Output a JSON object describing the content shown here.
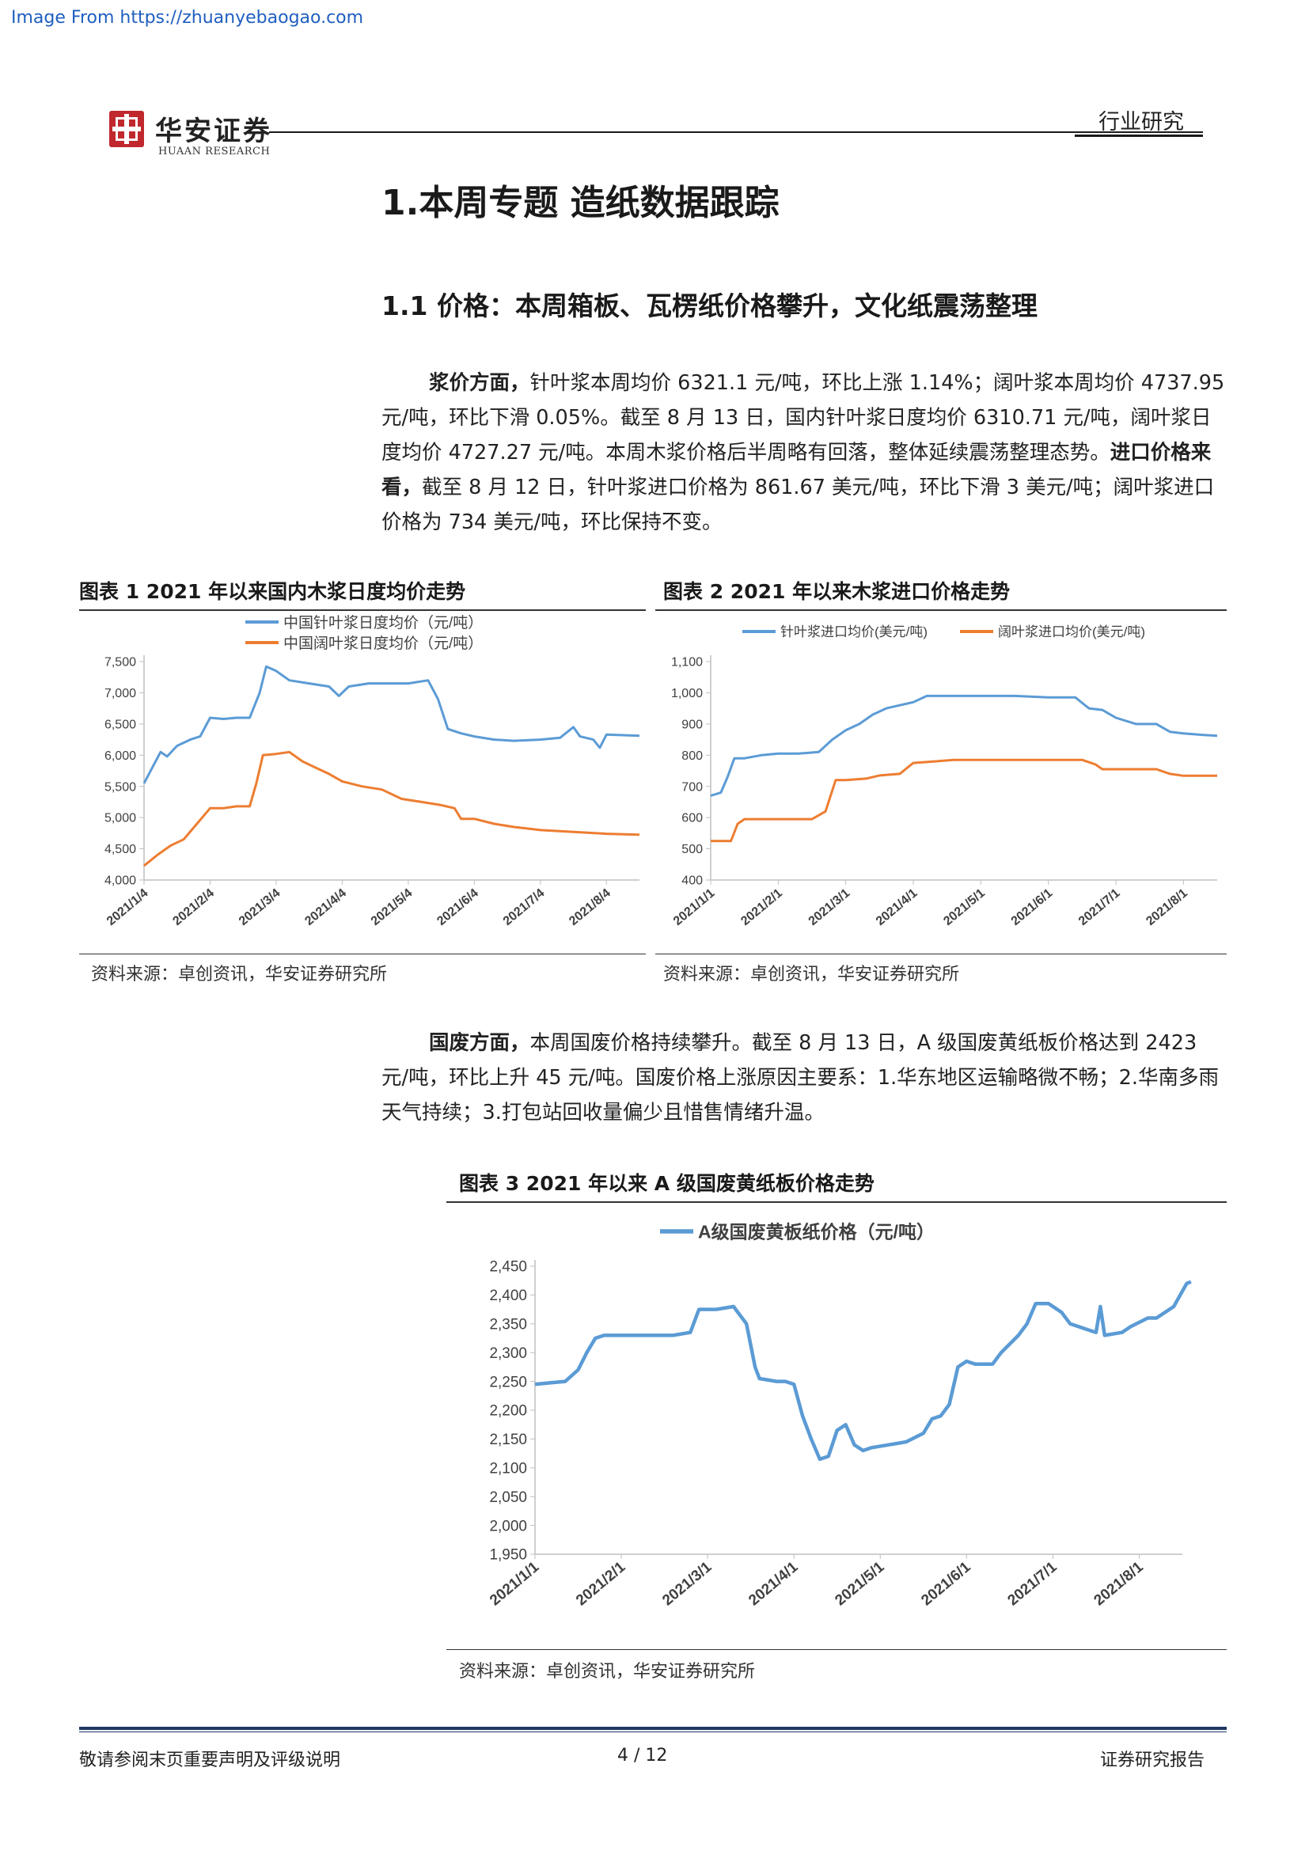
{
  "watermark": "Image From https://zhuanyebaogao.com",
  "header": {
    "logo_cn": "华安证券",
    "logo_en": "HUAAN RESEARCH",
    "category": "行业研究"
  },
  "section_title": "1.本周专题 造纸数据跟踪",
  "subsection_title": "1.1 价格：本周箱板、瓦楞纸价格攀升，文化纸震荡整理",
  "paragraph1": {
    "lead": "浆价方面，",
    "text1": "针叶浆本周均价 6321.1 元/吨，环比上涨 1.14%；阔叶浆本周均价 4737.95 元/吨，环比下滑 0.05%。截至 8 月 13 日，国内针叶浆日度均价 6310.71 元/吨，阔叶浆日度均价 4727.27 元/吨。本周木浆价格后半周略有回落，整体延续震荡整理态势。",
    "lead2": "进口价格来看，",
    "text2": "截至 8 月 12 日，针叶浆进口价格为 861.67 美元/吨，环比下滑 3 美元/吨；阔叶浆进口价格为 734 美元/吨，环比保持不变。"
  },
  "paragraph2": {
    "lead": "国废方面，",
    "text": "本周国废价格持续攀升。截至 8 月 13 日，A 级国废黄纸板价格达到 2423 元/吨，环比上升 45 元/吨。国废价格上涨原因主要系：1.华东地区运输略微不畅；2.华南多雨天气持续；3.打包站回收量偏少且惜售情绪升温。"
  },
  "figures": [
    {
      "title": "图表 1 2021 年以来国内木浆日度均价走势",
      "source": "资料来源：卓创资讯，华安证券研究所"
    },
    {
      "title": "图表 2 2021 年以来木浆进口价格走势",
      "source": "资料来源：卓创资讯，华安证券研究所"
    },
    {
      "title": "图表  3 2021 年以来 A 级国废黄纸板价格走势",
      "source": "资料来源：卓创资讯，华安证券研究所"
    }
  ],
  "chart_data": [
    {
      "type": "line",
      "x_ticks": [
        "2021/1/4",
        "2021/2/4",
        "2021/3/4",
        "2021/4/4",
        "2021/5/4",
        "2021/6/4",
        "2021/7/4",
        "2021/8/4"
      ],
      "ylim": [
        4000,
        7500
      ],
      "y_ticks": [
        "7,500",
        "7,000",
        "6,500",
        "6,000",
        "5,500",
        "5,000",
        "4,500",
        "4,000"
      ],
      "series": [
        {
          "name": "中国针叶浆日度均价（元/吨）",
          "color": "#5b9bd5",
          "points": [
            [
              0,
              5550
            ],
            [
              0.15,
              5850
            ],
            [
              0.25,
              6050
            ],
            [
              0.35,
              5980
            ],
            [
              0.5,
              6150
            ],
            [
              0.7,
              6250
            ],
            [
              0.85,
              6300
            ],
            [
              1.0,
              6600
            ],
            [
              1.2,
              6580
            ],
            [
              1.4,
              6600
            ],
            [
              1.6,
              6600
            ],
            [
              1.75,
              7000
            ],
            [
              1.85,
              7420
            ],
            [
              2.0,
              7350
            ],
            [
              2.2,
              7200
            ],
            [
              2.5,
              7150
            ],
            [
              2.8,
              7100
            ],
            [
              2.95,
              6950
            ],
            [
              3.1,
              7100
            ],
            [
              3.4,
              7150
            ],
            [
              3.7,
              7150
            ],
            [
              4.0,
              7150
            ],
            [
              4.3,
              7200
            ],
            [
              4.45,
              6900
            ],
            [
              4.6,
              6420
            ],
            [
              4.8,
              6350
            ],
            [
              5.0,
              6300
            ],
            [
              5.3,
              6250
            ],
            [
              5.6,
              6230
            ],
            [
              6.0,
              6250
            ],
            [
              6.3,
              6280
            ],
            [
              6.5,
              6450
            ],
            [
              6.6,
              6300
            ],
            [
              6.8,
              6250
            ],
            [
              6.9,
              6120
            ],
            [
              7.0,
              6330
            ],
            [
              7.3,
              6320
            ],
            [
              7.5,
              6310
            ]
          ]
        },
        {
          "name": "中国阔叶浆日度均价（元/吨）",
          "color": "#ed7d31",
          "points": [
            [
              0,
              4230
            ],
            [
              0.2,
              4400
            ],
            [
              0.4,
              4550
            ],
            [
              0.6,
              4650
            ],
            [
              0.8,
              4900
            ],
            [
              1.0,
              5150
            ],
            [
              1.2,
              5150
            ],
            [
              1.4,
              5180
            ],
            [
              1.6,
              5180
            ],
            [
              1.7,
              5550
            ],
            [
              1.8,
              6000
            ],
            [
              2.0,
              6020
            ],
            [
              2.2,
              6050
            ],
            [
              2.4,
              5900
            ],
            [
              2.6,
              5800
            ],
            [
              2.8,
              5700
            ],
            [
              3.0,
              5580
            ],
            [
              3.3,
              5500
            ],
            [
              3.6,
              5450
            ],
            [
              3.9,
              5300
            ],
            [
              4.2,
              5250
            ],
            [
              4.5,
              5200
            ],
            [
              4.7,
              5150
            ],
            [
              4.8,
              4980
            ],
            [
              5.0,
              4980
            ],
            [
              5.3,
              4900
            ],
            [
              5.6,
              4850
            ],
            [
              6.0,
              4800
            ],
            [
              6.5,
              4770
            ],
            [
              7.0,
              4740
            ],
            [
              7.5,
              4727
            ]
          ]
        }
      ]
    },
    {
      "type": "line",
      "x_ticks": [
        "2021/1/1",
        "2021/2/1",
        "2021/3/1",
        "2021/4/1",
        "2021/5/1",
        "2021/6/1",
        "2021/7/1",
        "2021/8/1"
      ],
      "ylim": [
        400,
        1100
      ],
      "y_ticks": [
        "1,100",
        "1,000",
        "900",
        "800",
        "700",
        "600",
        "500",
        "400"
      ],
      "series": [
        {
          "name": "针叶浆进口均价(美元/吨)",
          "color": "#5b9bd5",
          "points": [
            [
              0,
              670
            ],
            [
              0.15,
              680
            ],
            [
              0.25,
              730
            ],
            [
              0.35,
              790
            ],
            [
              0.5,
              790
            ],
            [
              0.75,
              800
            ],
            [
              1.0,
              805
            ],
            [
              1.3,
              805
            ],
            [
              1.6,
              810
            ],
            [
              1.8,
              850
            ],
            [
              2.0,
              880
            ],
            [
              2.2,
              900
            ],
            [
              2.4,
              930
            ],
            [
              2.6,
              950
            ],
            [
              2.8,
              960
            ],
            [
              3.0,
              970
            ],
            [
              3.2,
              990
            ],
            [
              3.5,
              990
            ],
            [
              4.0,
              990
            ],
            [
              4.5,
              990
            ],
            [
              5.0,
              985
            ],
            [
              5.4,
              985
            ],
            [
              5.6,
              950
            ],
            [
              5.8,
              945
            ],
            [
              6.0,
              920
            ],
            [
              6.3,
              900
            ],
            [
              6.6,
              900
            ],
            [
              6.8,
              875
            ],
            [
              7.0,
              870
            ],
            [
              7.3,
              865
            ],
            [
              7.5,
              862
            ]
          ]
        },
        {
          "name": "阔叶浆进口均价(美元/吨)",
          "color": "#ed7d31",
          "points": [
            [
              0,
              525
            ],
            [
              0.3,
              525
            ],
            [
              0.4,
              580
            ],
            [
              0.5,
              595
            ],
            [
              1.0,
              595
            ],
            [
              1.5,
              595
            ],
            [
              1.7,
              620
            ],
            [
              1.85,
              720
            ],
            [
              2.0,
              720
            ],
            [
              2.3,
              725
            ],
            [
              2.5,
              735
            ],
            [
              2.8,
              740
            ],
            [
              3.0,
              775
            ],
            [
              3.3,
              780
            ],
            [
              3.6,
              785
            ],
            [
              4.5,
              785
            ],
            [
              5.5,
              785
            ],
            [
              5.7,
              770
            ],
            [
              5.8,
              755
            ],
            [
              6.2,
              755
            ],
            [
              6.6,
              755
            ],
            [
              6.8,
              740
            ],
            [
              7.0,
              734
            ],
            [
              7.5,
              734
            ]
          ]
        }
      ]
    },
    {
      "type": "line",
      "x_ticks": [
        "2021/1/1",
        "2021/2/1",
        "2021/3/1",
        "2021/4/1",
        "2021/5/1",
        "2021/6/1",
        "2021/7/1",
        "2021/8/1"
      ],
      "ylim": [
        1950,
        2450
      ],
      "y_ticks": [
        "2,450",
        "2,400",
        "2,350",
        "2,300",
        "2,250",
        "2,200",
        "2,150",
        "2,100",
        "2,050",
        "2,000",
        "1,950"
      ],
      "series": [
        {
          "name": "A级国废黄板纸价格（元/吨）",
          "color": "#5b9bd5",
          "points": [
            [
              0,
              2245
            ],
            [
              0.2,
              2248
            ],
            [
              0.35,
              2250
            ],
            [
              0.5,
              2270
            ],
            [
              0.6,
              2300
            ],
            [
              0.7,
              2325
            ],
            [
              0.8,
              2330
            ],
            [
              1.0,
              2330
            ],
            [
              1.3,
              2330
            ],
            [
              1.6,
              2330
            ],
            [
              1.8,
              2335
            ],
            [
              1.9,
              2375
            ],
            [
              2.1,
              2375
            ],
            [
              2.3,
              2380
            ],
            [
              2.45,
              2350
            ],
            [
              2.55,
              2275
            ],
            [
              2.6,
              2255
            ],
            [
              2.8,
              2250
            ],
            [
              2.9,
              2250
            ],
            [
              3.0,
              2245
            ],
            [
              3.1,
              2190
            ],
            [
              3.2,
              2150
            ],
            [
              3.3,
              2115
            ],
            [
              3.4,
              2120
            ],
            [
              3.5,
              2165
            ],
            [
              3.6,
              2175
            ],
            [
              3.7,
              2140
            ],
            [
              3.8,
              2130
            ],
            [
              3.9,
              2135
            ],
            [
              4.1,
              2140
            ],
            [
              4.3,
              2145
            ],
            [
              4.5,
              2160
            ],
            [
              4.6,
              2185
            ],
            [
              4.7,
              2190
            ],
            [
              4.8,
              2210
            ],
            [
              4.9,
              2275
            ],
            [
              5.0,
              2285
            ],
            [
              5.1,
              2280
            ],
            [
              5.3,
              2280
            ],
            [
              5.4,
              2300
            ],
            [
              5.6,
              2330
            ],
            [
              5.7,
              2350
            ],
            [
              5.8,
              2385
            ],
            [
              5.95,
              2385
            ],
            [
              6.1,
              2370
            ],
            [
              6.2,
              2350
            ],
            [
              6.4,
              2340
            ],
            [
              6.5,
              2335
            ],
            [
              6.55,
              2380
            ],
            [
              6.6,
              2330
            ],
            [
              6.8,
              2335
            ],
            [
              6.9,
              2345
            ],
            [
              7.1,
              2360
            ],
            [
              7.2,
              2360
            ],
            [
              7.4,
              2380
            ],
            [
              7.55,
              2420
            ],
            [
              7.6,
              2423
            ]
          ]
        }
      ]
    }
  ],
  "footer": {
    "left": "敬请参阅末页重要声明及评级说明",
    "page": "4 / 12",
    "right": "证券研究报告"
  }
}
